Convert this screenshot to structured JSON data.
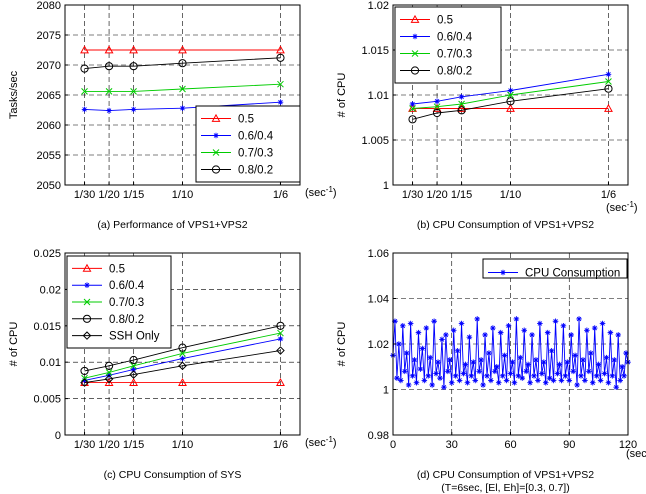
{
  "chart_data": [
    {
      "id": "a",
      "type": "line",
      "caption": "(a) Performance of VPS1+VPS2",
      "ylabel": "Tasks/sec",
      "x_tick_labels": [
        "1/30",
        "1/20",
        "1/15",
        "1/10",
        "1/6"
      ],
      "x_unit_label": "(sec",
      "x_unit_sup": "-1",
      "x_unit_close": ")",
      "x_values": [
        0.0333,
        0.05,
        0.0667,
        0.1,
        0.1667
      ],
      "xlim": [
        0.02,
        0.18
      ],
      "ylim": [
        2050,
        2080
      ],
      "y_ticks": [
        2050,
        2055,
        2060,
        2065,
        2070,
        2075,
        2080
      ],
      "grid": true,
      "legend_position": "bottom-right",
      "series": [
        {
          "name": "0.5",
          "color": "#ff0000",
          "marker": "triangle",
          "values": [
            2072.5,
            2072.5,
            2072.5,
            2072.5,
            2072.5
          ]
        },
        {
          "name": "0.6/0.4",
          "color": "#0000ff",
          "marker": "star",
          "values": [
            2062.6,
            2062.4,
            2062.6,
            2062.8,
            2063.8
          ]
        },
        {
          "name": "0.7/0.3",
          "color": "#00cc00",
          "marker": "x",
          "values": [
            2065.6,
            2065.6,
            2065.6,
            2066.0,
            2066.8
          ]
        },
        {
          "name": "0.8/0.2",
          "color": "#000000",
          "marker": "circle",
          "values": [
            2069.4,
            2069.8,
            2069.8,
            2070.3,
            2071.2
          ]
        }
      ]
    },
    {
      "id": "b",
      "type": "line",
      "caption": "(b) CPU Consumption of VPS1+VPS2",
      "ylabel": "# of CPU",
      "x_tick_labels": [
        "1/30",
        "1/20",
        "1/15",
        "1/10",
        "1/6"
      ],
      "x_unit_label": "(sec",
      "x_unit_sup": "-1",
      "x_unit_close": ")",
      "x_values": [
        0.0333,
        0.05,
        0.0667,
        0.1,
        0.1667
      ],
      "xlim": [
        0.02,
        0.18
      ],
      "ylim": [
        1.0,
        1.02
      ],
      "y_ticks": [
        1,
        1.005,
        1.01,
        1.015,
        1.02
      ],
      "y_tick_labels": [
        "1",
        "1.005",
        "1.01",
        "1.015",
        "1.02"
      ],
      "grid": true,
      "legend_position": "top-left",
      "series": [
        {
          "name": "0.5",
          "color": "#ff0000",
          "marker": "triangle",
          "values": [
            1.0085,
            1.0085,
            1.0085,
            1.0085,
            1.0085
          ]
        },
        {
          "name": "0.6/0.4",
          "color": "#0000ff",
          "marker": "star",
          "values": [
            1.009,
            1.0093,
            1.0098,
            1.0105,
            1.0123
          ]
        },
        {
          "name": "0.7/0.3",
          "color": "#00cc00",
          "marker": "x",
          "values": [
            1.0085,
            1.0087,
            1.009,
            1.01,
            1.0115
          ]
        },
        {
          "name": "0.8/0.2",
          "color": "#000000",
          "marker": "circle",
          "values": [
            1.0073,
            1.008,
            1.0083,
            1.0093,
            1.0107
          ]
        }
      ]
    },
    {
      "id": "c",
      "type": "line",
      "caption": "(c) CPU Consumption of SYS",
      "ylabel": "# of CPU",
      "x_tick_labels": [
        "1/30",
        "1/20",
        "1/15",
        "1/10",
        "1/6"
      ],
      "x_unit_label": "(sec",
      "x_unit_sup": "-1",
      "x_unit_close": ")",
      "x_values": [
        0.0333,
        0.05,
        0.0667,
        0.1,
        0.1667
      ],
      "xlim": [
        0.02,
        0.18
      ],
      "ylim": [
        0,
        0.025
      ],
      "y_ticks": [
        0,
        0.005,
        0.01,
        0.015,
        0.02,
        0.025
      ],
      "y_tick_labels": [
        "0",
        "0.005",
        "0.01",
        "0.015",
        "0.02",
        "0.025"
      ],
      "grid": true,
      "legend_position": "top-left",
      "series": [
        {
          "name": "0.5",
          "color": "#ff0000",
          "marker": "triangle",
          "values": [
            0.0072,
            0.0072,
            0.0072,
            0.0072,
            0.0072
          ]
        },
        {
          "name": "0.6/0.4",
          "color": "#0000ff",
          "marker": "star",
          "values": [
            0.0075,
            0.0082,
            0.009,
            0.0105,
            0.0132
          ]
        },
        {
          "name": "0.7/0.3",
          "color": "#00cc00",
          "marker": "x",
          "values": [
            0.0078,
            0.0086,
            0.0095,
            0.0112,
            0.014
          ]
        },
        {
          "name": "0.8/0.2",
          "color": "#000000",
          "marker": "circle",
          "values": [
            0.0088,
            0.0095,
            0.0103,
            0.012,
            0.015
          ]
        },
        {
          "name": "SSH Only",
          "color": "#000000",
          "marker": "diamond",
          "values": [
            0.0072,
            0.0077,
            0.0083,
            0.0095,
            0.0116
          ]
        }
      ]
    },
    {
      "id": "d",
      "type": "line",
      "caption": "(d) CPU Consumption of VPS1+VPS2",
      "caption2": "(T=6sec, [El, Eh]=[0.3, 0.7])",
      "ylabel": "# of CPU",
      "x_ticks": [
        0,
        30,
        60,
        90,
        120
      ],
      "x_tick_labels": [
        "0",
        "30",
        "60",
        "90",
        "120"
      ],
      "x_unit_label": "(sec)",
      "xlim": [
        0,
        120
      ],
      "ylim": [
        0.98,
        1.06
      ],
      "y_ticks": [
        0.98,
        1,
        1.02,
        1.04,
        1.06
      ],
      "y_tick_labels": [
        "0.98",
        "1",
        "1.02",
        "1.04",
        "1.06"
      ],
      "grid": true,
      "legend_position": "top-right",
      "series": [
        {
          "name": "CPU Consumption",
          "color": "#0000ff",
          "marker": "star",
          "x": [
            0,
            1,
            2,
            3,
            4,
            5,
            6,
            7,
            8,
            9,
            10,
            11,
            12,
            13,
            14,
            15,
            16,
            17,
            18,
            19,
            20,
            21,
            22,
            23,
            24,
            25,
            26,
            27,
            28,
            29,
            30,
            31,
            32,
            33,
            34,
            35,
            36,
            37,
            38,
            39,
            40,
            41,
            42,
            43,
            44,
            45,
            46,
            47,
            48,
            49,
            50,
            51,
            52,
            53,
            54,
            55,
            56,
            57,
            58,
            59,
            60,
            61,
            62,
            63,
            64,
            65,
            66,
            67,
            68,
            69,
            70,
            71,
            72,
            73,
            74,
            75,
            76,
            77,
            78,
            79,
            80,
            81,
            82,
            83,
            84,
            85,
            86,
            87,
            88,
            89,
            90,
            91,
            92,
            93,
            94,
            95,
            96,
            97,
            98,
            99,
            100,
            101,
            102,
            103,
            104,
            105,
            106,
            107,
            108,
            109,
            110,
            111,
            112,
            113,
            114,
            115,
            116,
            117,
            118,
            119,
            120
          ],
          "values": [
            1.015,
            1.03,
            1.005,
            1.02,
            1.004,
            1.028,
            1.008,
            1.016,
            1.002,
            1.029,
            1.006,
            1.013,
            1.003,
            1.025,
            1.009,
            1.018,
            1.004,
            1.027,
            1.006,
            1.014,
            1.002,
            1.03,
            1.007,
            1.012,
            1.005,
            1.022,
            1.001,
            1.024,
            1.008,
            1.013,
            1.003,
            1.026,
            1.006,
            1.017,
            1.004,
            1.029,
            1.007,
            1.011,
            1.003,
            1.023,
            1.006,
            1.012,
            1.004,
            1.031,
            1.008,
            1.013,
            1.002,
            1.024,
            1.006,
            1.016,
            1.004,
            1.027,
            1.008,
            1.01,
            1.003,
            1.025,
            1.006,
            1.015,
            1.004,
            1.028,
            1.007,
            1.012,
            1.003,
            1.031,
            1.006,
            1.014,
            1.005,
            1.026,
            1.008,
            1.011,
            1.003,
            1.024,
            1.006,
            1.013,
            1.004,
            1.029,
            1.007,
            1.012,
            1.003,
            1.025,
            1.005,
            1.017,
            1.004,
            1.03,
            1.007,
            1.011,
            1.004,
            1.028,
            1.006,
            1.012,
            1.004,
            1.024,
            1.008,
            1.015,
            1.002,
            1.031,
            1.006,
            1.013,
            1.004,
            1.026,
            1.008,
            1.016,
            1.003,
            1.027,
            1.006,
            1.011,
            1.004,
            1.029,
            1.007,
            1.014,
            1.003,
            1.025,
            1.006,
            1.013,
            1.001,
            1.024,
            1.004,
            1.01,
            1.006,
            1.016,
            1.012
          ]
        }
      ]
    }
  ]
}
